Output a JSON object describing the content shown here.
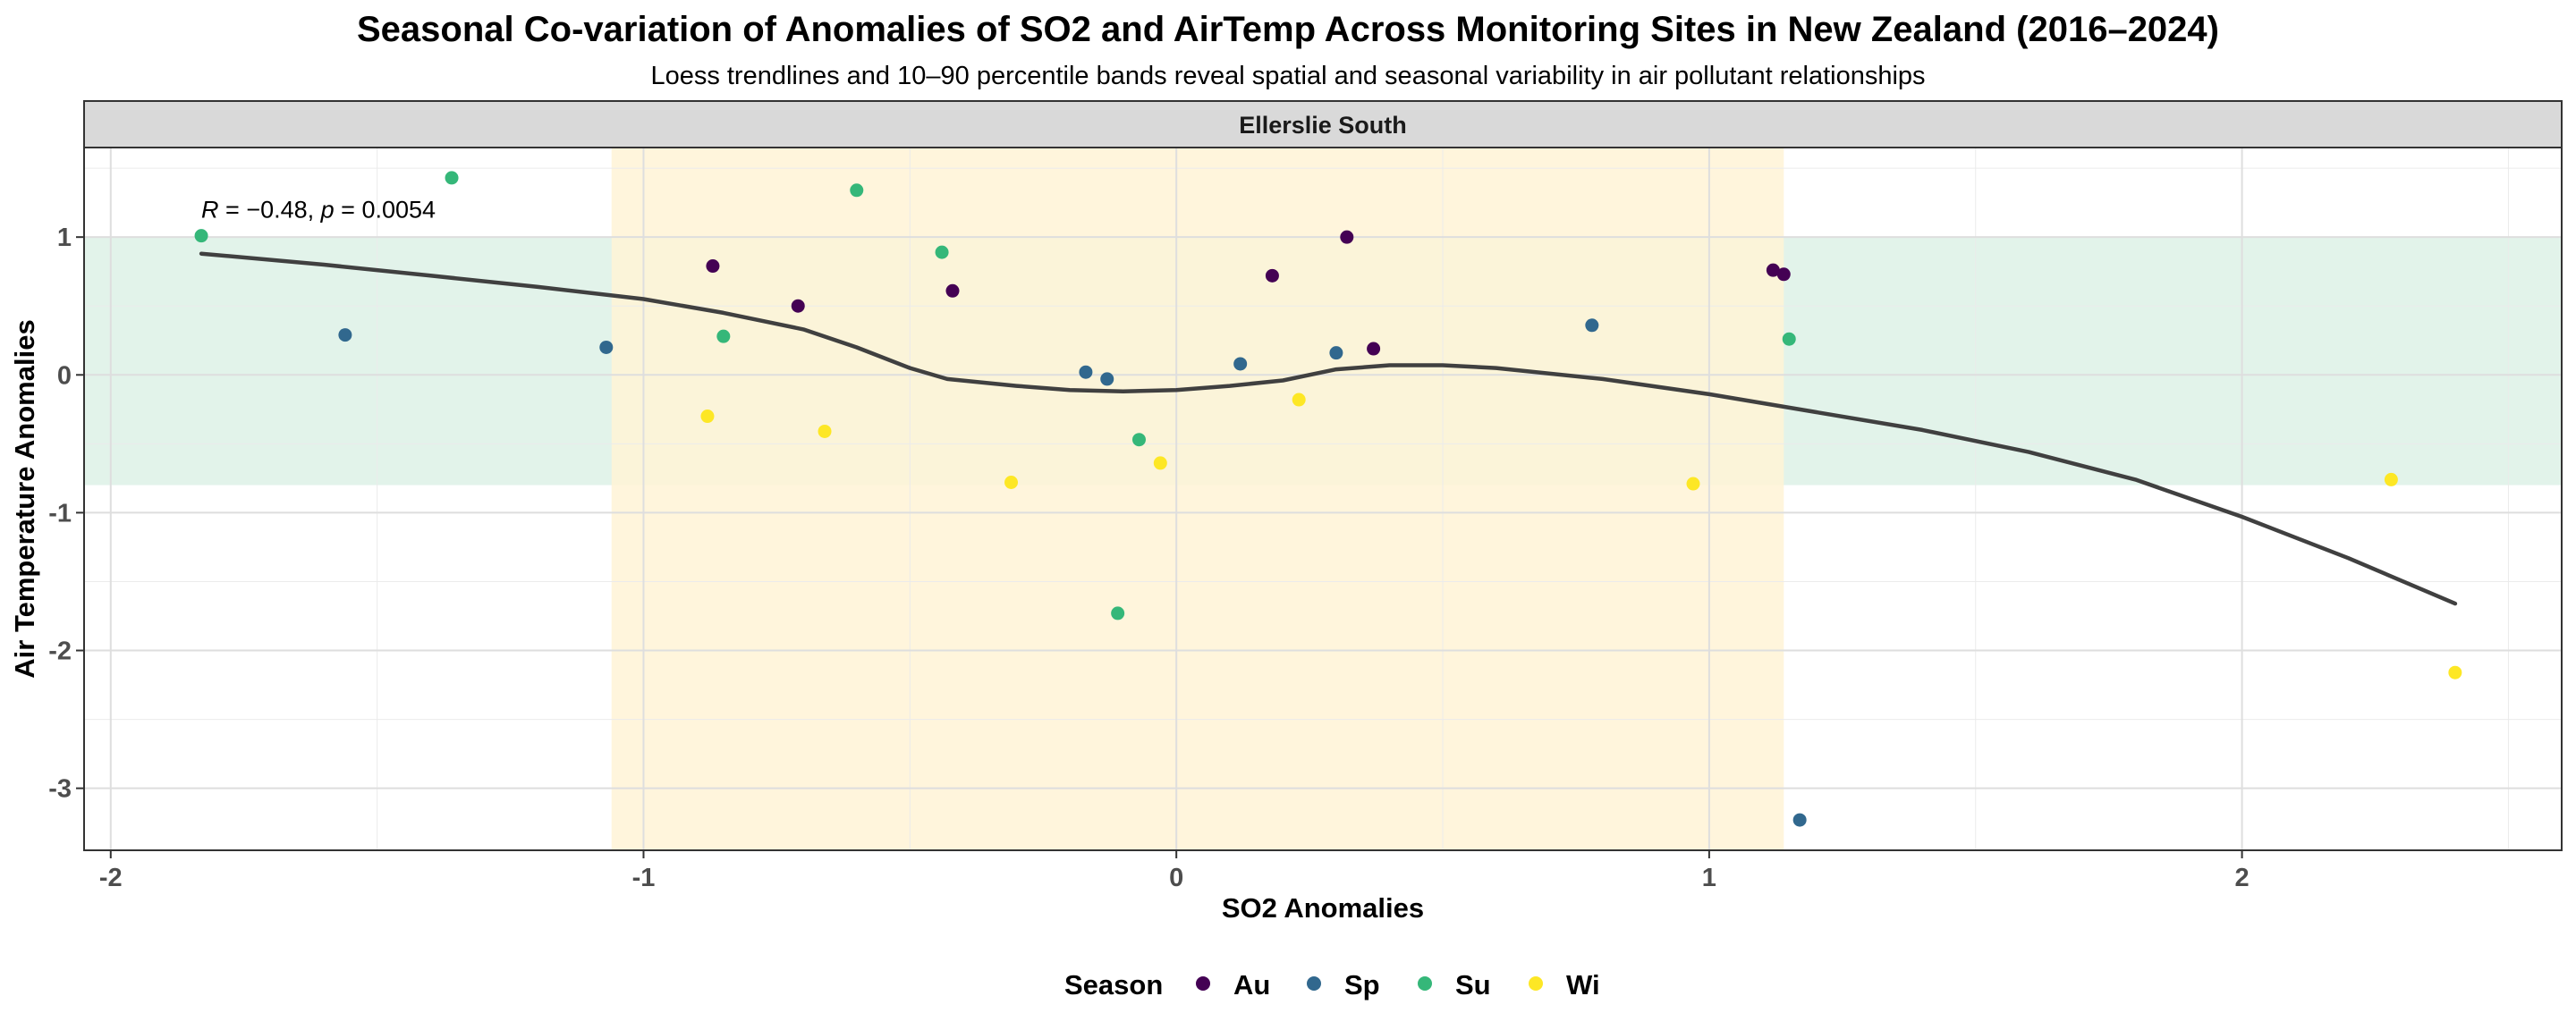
{
  "chart_data": {
    "type": "scatter",
    "title": "Seasonal Co-variation of Anomalies of SO2 and AirTemp Across Monitoring Sites in New Zealand (2016–2024)",
    "subtitle": "Loess trendlines and 10–90 percentile bands reveal spatial and seasonal variability in air pollutant relationships",
    "facet": "Ellerslie South",
    "xlabel": "SO2 Anomalies",
    "ylabel": "Air Temperature Anomalies",
    "xlim": [
      -2.05,
      2.6
    ],
    "ylim": [
      -3.45,
      1.65
    ],
    "x_ticks": [
      -2,
      -1,
      0,
      1,
      2
    ],
    "y_ticks": [
      -3,
      -2,
      -1,
      0,
      1
    ],
    "grid": true,
    "legend_position": "bottom",
    "legend_title": "Season",
    "annotation": {
      "r_symbol": "R",
      "r_value": " = −0.48, ",
      "p_symbol": "p",
      "p_value": " = 0.0054",
      "x": -1.83,
      "y": 1.2
    },
    "bands": {
      "x_band": [
        -1.06,
        1.14
      ],
      "y_band": [
        -0.8,
        1.0
      ],
      "x_band_color": "#fff3d6",
      "y_band_color": "#e2f3ea"
    },
    "series": [
      {
        "name": "Au",
        "color": "#440154",
        "points": [
          {
            "x": -0.87,
            "y": 0.79
          },
          {
            "x": -0.71,
            "y": 0.5
          },
          {
            "x": -0.42,
            "y": 0.61
          },
          {
            "x": 0.18,
            "y": 0.72
          },
          {
            "x": 0.32,
            "y": 1.0
          },
          {
            "x": 0.37,
            "y": 0.19
          },
          {
            "x": 1.12,
            "y": 0.76
          },
          {
            "x": 1.14,
            "y": 0.73
          }
        ]
      },
      {
        "name": "Sp",
        "color": "#31688e",
        "points": [
          {
            "x": -1.56,
            "y": 0.29
          },
          {
            "x": -1.07,
            "y": 0.2
          },
          {
            "x": -0.17,
            "y": 0.02
          },
          {
            "x": -0.13,
            "y": -0.03
          },
          {
            "x": 0.12,
            "y": 0.08
          },
          {
            "x": 0.3,
            "y": 0.16
          },
          {
            "x": 0.78,
            "y": 0.36
          },
          {
            "x": 1.17,
            "y": -3.23
          }
        ]
      },
      {
        "name": "Su",
        "color": "#35b779",
        "points": [
          {
            "x": -1.83,
            "y": 1.01
          },
          {
            "x": -1.36,
            "y": 1.43
          },
          {
            "x": -0.85,
            "y": 0.28
          },
          {
            "x": -0.6,
            "y": 1.34
          },
          {
            "x": -0.44,
            "y": 0.89
          },
          {
            "x": -0.07,
            "y": -0.47
          },
          {
            "x": -0.11,
            "y": -1.73
          },
          {
            "x": 1.15,
            "y": 0.26
          }
        ]
      },
      {
        "name": "Wi",
        "color": "#fde725",
        "points": [
          {
            "x": -0.88,
            "y": -0.3
          },
          {
            "x": -0.66,
            "y": -0.41
          },
          {
            "x": -0.31,
            "y": -0.78
          },
          {
            "x": -0.03,
            "y": -0.64
          },
          {
            "x": 0.23,
            "y": -0.18
          },
          {
            "x": 0.97,
            "y": -0.79
          },
          {
            "x": 2.28,
            "y": -0.76
          },
          {
            "x": 2.4,
            "y": -2.16
          }
        ]
      }
    ],
    "trend_line": {
      "color": "#404040",
      "points": [
        {
          "x": -1.83,
          "y": 0.88
        },
        {
          "x": -1.6,
          "y": 0.8
        },
        {
          "x": -1.4,
          "y": 0.72
        },
        {
          "x": -1.2,
          "y": 0.64
        },
        {
          "x": -1.0,
          "y": 0.55
        },
        {
          "x": -0.85,
          "y": 0.45
        },
        {
          "x": -0.7,
          "y": 0.33
        },
        {
          "x": -0.6,
          "y": 0.2
        },
        {
          "x": -0.5,
          "y": 0.05
        },
        {
          "x": -0.43,
          "y": -0.03
        },
        {
          "x": -0.3,
          "y": -0.08
        },
        {
          "x": -0.2,
          "y": -0.11
        },
        {
          "x": -0.1,
          "y": -0.12
        },
        {
          "x": 0.0,
          "y": -0.11
        },
        {
          "x": 0.1,
          "y": -0.08
        },
        {
          "x": 0.2,
          "y": -0.04
        },
        {
          "x": 0.3,
          "y": 0.04
        },
        {
          "x": 0.4,
          "y": 0.07
        },
        {
          "x": 0.5,
          "y": 0.07
        },
        {
          "x": 0.6,
          "y": 0.05
        },
        {
          "x": 0.8,
          "y": -0.03
        },
        {
          "x": 1.0,
          "y": -0.14
        },
        {
          "x": 1.2,
          "y": -0.27
        },
        {
          "x": 1.4,
          "y": -0.4
        },
        {
          "x": 1.6,
          "y": -0.56
        },
        {
          "x": 1.8,
          "y": -0.76
        },
        {
          "x": 2.0,
          "y": -1.03
        },
        {
          "x": 2.2,
          "y": -1.33
        },
        {
          "x": 2.4,
          "y": -1.66
        }
      ]
    }
  }
}
